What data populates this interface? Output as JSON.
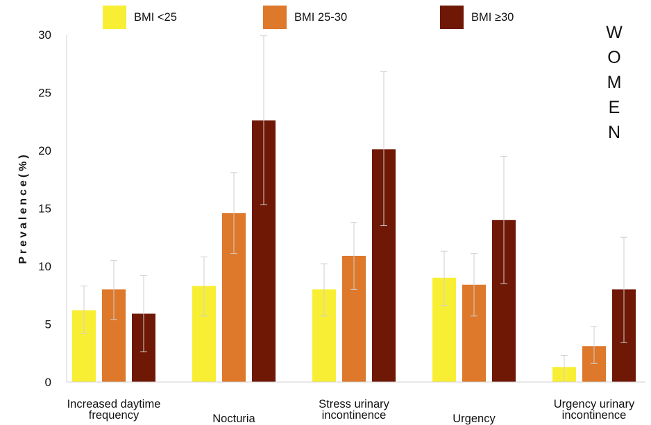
{
  "chart_data": {
    "type": "bar",
    "title": "",
    "side_label": [
      "W",
      "O",
      "M",
      "E",
      "N"
    ],
    "xlabel": "",
    "ylabel": "Prevalence(%)",
    "ylim": [
      0,
      30
    ],
    "yticks": [
      0,
      5,
      10,
      15,
      20,
      25,
      30
    ],
    "grid": false,
    "legend_position": "top",
    "categories": [
      [
        "Increased daytime",
        "frequency"
      ],
      [
        "Nocturia"
      ],
      [
        "Stress urinary",
        "incontinence"
      ],
      [
        "Urgency"
      ],
      [
        "Urgency urinary",
        "incontinence"
      ]
    ],
    "series": [
      {
        "name": "BMI <25",
        "color": "#f8ef34",
        "values": [
          6.2,
          8.3,
          8.0,
          9.0,
          1.3
        ],
        "err_low": [
          4.2,
          5.7,
          5.7,
          6.6,
          0.0
        ],
        "err_high": [
          8.3,
          10.8,
          10.2,
          11.3,
          2.3
        ]
      },
      {
        "name": "BMI 25-30",
        "color": "#de782a",
        "values": [
          8.0,
          14.6,
          10.9,
          8.4,
          3.1
        ],
        "err_low": [
          5.4,
          11.1,
          8.0,
          5.7,
          1.6
        ],
        "err_high": [
          10.5,
          18.1,
          13.8,
          11.1,
          4.8
        ]
      },
      {
        "name": "BMI ≥30",
        "color": "#6f1806",
        "values": [
          5.9,
          22.6,
          20.1,
          14.0,
          8.0
        ],
        "err_low": [
          2.6,
          15.3,
          13.5,
          8.5,
          3.4
        ],
        "err_high": [
          9.2,
          29.9,
          26.8,
          19.5,
          12.5
        ]
      }
    ]
  }
}
